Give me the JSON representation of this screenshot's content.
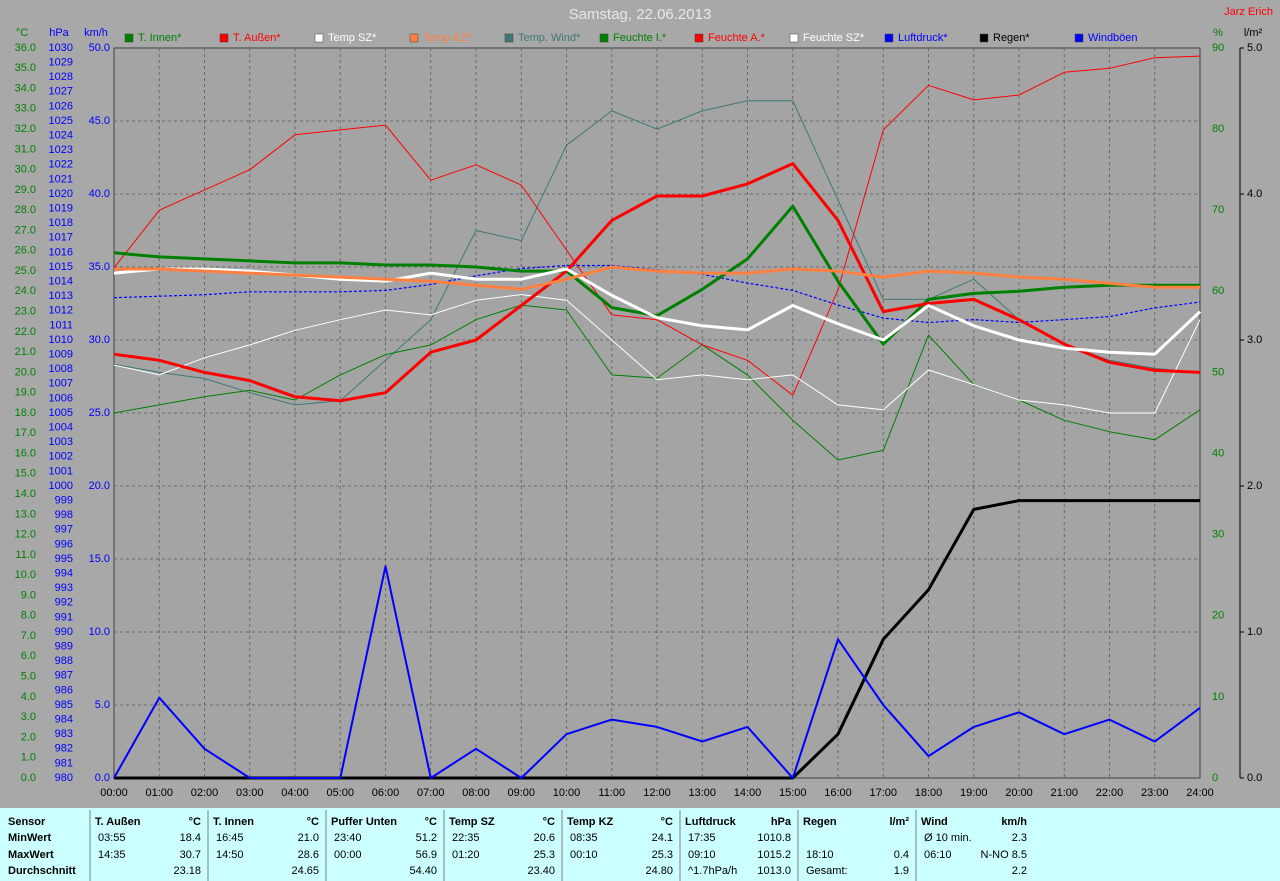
{
  "chart_data": {
    "type": "line",
    "title": "Samstag, 22.06.2013",
    "author": "Jarz Erich",
    "grid": true,
    "x": [
      "00:00",
      "01:00",
      "02:00",
      "03:00",
      "04:00",
      "05:00",
      "06:00",
      "07:00",
      "08:00",
      "09:00",
      "10:00",
      "11:00",
      "12:00",
      "13:00",
      "14:00",
      "15:00",
      "16:00",
      "17:00",
      "18:00",
      "19:00",
      "20:00",
      "21:00",
      "22:00",
      "23:00",
      "24:00"
    ],
    "axes": [
      {
        "unit": "°C",
        "side": "left",
        "color": "#008000",
        "lim": [
          0,
          36
        ],
        "ticks": [
          {
            "value": 0,
            "label": "0.0"
          },
          {
            "value": 1,
            "label": "1.0"
          },
          {
            "value": 2,
            "label": "2.0"
          },
          {
            "value": 3,
            "label": "3.0"
          },
          {
            "value": 4,
            "label": "4.0"
          },
          {
            "value": 5,
            "label": "5.0"
          },
          {
            "value": 6,
            "label": "6.0"
          },
          {
            "value": 7,
            "label": "7.0"
          },
          {
            "value": 8,
            "label": "8.0"
          },
          {
            "value": 9,
            "label": "9.0"
          },
          {
            "value": 10,
            "label": "10.0"
          },
          {
            "value": 11,
            "label": "11.0"
          },
          {
            "value": 12,
            "label": "12.0"
          },
          {
            "value": 13,
            "label": "13.0"
          },
          {
            "value": 14,
            "label": "14.0"
          },
          {
            "value": 15,
            "label": "15.0"
          },
          {
            "value": 16,
            "label": "16.0"
          },
          {
            "value": 17,
            "label": "17.0"
          },
          {
            "value": 18,
            "label": "18.0"
          },
          {
            "value": 19,
            "label": "19.0"
          },
          {
            "value": 20,
            "label": "20.0"
          },
          {
            "value": 21,
            "label": "21.0"
          },
          {
            "value": 22,
            "label": "22.0"
          },
          {
            "value": 23,
            "label": "23.0"
          },
          {
            "value": 24,
            "label": "24.0"
          },
          {
            "value": 25,
            "label": "25.0"
          },
          {
            "value": 26,
            "label": "26.0"
          },
          {
            "value": 27,
            "label": "27.0"
          },
          {
            "value": 28,
            "label": "28.0"
          },
          {
            "value": 29,
            "label": "29.0"
          },
          {
            "value": 30,
            "label": "30.0"
          },
          {
            "value": 31,
            "label": "31.0"
          },
          {
            "value": 32,
            "label": "32.0"
          },
          {
            "value": 33,
            "label": "33.0"
          },
          {
            "value": 34,
            "label": "34.0"
          },
          {
            "value": 35,
            "label": "35.0"
          },
          {
            "value": 36,
            "label": "36.0"
          }
        ]
      },
      {
        "unit": "hPa",
        "side": "left",
        "color": "#0000ff",
        "lim": [
          980,
          1030
        ],
        "ticks": [
          980,
          981,
          982,
          983,
          984,
          985,
          986,
          987,
          988,
          989,
          990,
          991,
          992,
          993,
          994,
          995,
          996,
          997,
          998,
          999,
          1000,
          1001,
          1002,
          1003,
          1004,
          1005,
          1006,
          1007,
          1008,
          1009,
          1010,
          1011,
          1012,
          1013,
          1014,
          1015,
          1016,
          1017,
          1018,
          1019,
          1020,
          1021,
          1022,
          1023,
          1024,
          1025,
          1026,
          1027,
          1028,
          1029,
          1030
        ]
      },
      {
        "unit": "km/h",
        "side": "left",
        "color": "#0000ff",
        "lim": [
          0,
          50
        ],
        "ticks": [
          {
            "value": 0,
            "label": "0.0"
          },
          {
            "value": 5,
            "label": "5.0"
          },
          {
            "value": 10,
            "label": "10.0"
          },
          {
            "value": 15,
            "label": "15.0"
          },
          {
            "value": 20,
            "label": "20.0"
          },
          {
            "value": 25,
            "label": "25.0"
          },
          {
            "value": 30,
            "label": "30.0"
          },
          {
            "value": 35,
            "label": "35.0"
          },
          {
            "value": 40,
            "label": "40.0"
          },
          {
            "value": 45,
            "label": "45.0"
          },
          {
            "value": 50,
            "label": "50.0"
          }
        ]
      },
      {
        "unit": "%",
        "side": "right",
        "color": "#008000",
        "lim": [
          0,
          90
        ],
        "ticks": [
          0,
          10,
          20,
          30,
          40,
          50,
          60,
          70,
          80,
          90
        ]
      },
      {
        "unit": "l/m²",
        "side": "right",
        "color": "#000000",
        "lim": [
          0,
          5
        ],
        "ticks": [
          {
            "value": 0,
            "label": "0.0"
          },
          {
            "value": 1,
            "label": "1.0"
          },
          {
            "value": 2,
            "label": "2.0"
          },
          {
            "value": 3,
            "label": "3.0"
          },
          {
            "value": 4,
            "label": "4.0"
          },
          {
            "value": 5,
            "label": "5.0"
          }
        ]
      }
    ],
    "series": [
      {
        "name": "T. Innen*",
        "color": "#008000",
        "axis": "°C",
        "style": "thick",
        "values": [
          25.9,
          25.7,
          25.6,
          25.5,
          25.4,
          25.4,
          25.3,
          25.3,
          25.2,
          25.0,
          25.0,
          23.2,
          22.8,
          24.1,
          25.6,
          28.2,
          24.5,
          21.4,
          23.6,
          23.9,
          24.0,
          24.2,
          24.3,
          24.3,
          24.3
        ]
      },
      {
        "name": "T. Außen*",
        "color": "#ff0000",
        "axis": "°C",
        "style": "thick",
        "values": [
          20.9,
          20.6,
          20.0,
          19.6,
          18.8,
          18.6,
          19.0,
          21.0,
          21.6,
          23.3,
          25.0,
          27.5,
          28.7,
          28.7,
          29.3,
          30.3,
          27.5,
          23.0,
          23.4,
          23.6,
          22.6,
          21.4,
          20.5,
          20.1,
          20.0
        ]
      },
      {
        "name": "Temp SZ*",
        "color": "#ffffff",
        "axis": "°C",
        "style": "thick",
        "values": [
          24.9,
          25.1,
          25.1,
          25.0,
          24.8,
          24.6,
          24.5,
          24.9,
          24.6,
          24.6,
          25.1,
          23.8,
          22.7,
          22.3,
          22.1,
          23.3,
          22.4,
          21.6,
          23.3,
          22.3,
          21.6,
          21.2,
          21.0,
          20.9,
          23.0
        ]
      },
      {
        "name": "Temp KZ*",
        "color": "#ff8040",
        "axis": "°C",
        "style": "thick",
        "values": [
          25.1,
          25.1,
          25.0,
          24.9,
          24.8,
          24.7,
          24.6,
          24.5,
          24.3,
          24.1,
          24.6,
          25.2,
          25.0,
          24.9,
          24.9,
          25.1,
          25.0,
          24.7,
          25.0,
          24.9,
          24.7,
          24.6,
          24.4,
          24.2,
          24.2
        ]
      },
      {
        "name": "Temp. Wind*",
        "color": "#3f7878",
        "axis": "°C",
        "style": "thin",
        "values": [
          20.4,
          20.0,
          19.7,
          19.0,
          18.4,
          18.6,
          20.6,
          22.6,
          27.0,
          26.5,
          31.2,
          32.9,
          32.0,
          32.9,
          33.4,
          33.4,
          28.5,
          23.6,
          23.6,
          24.6,
          22.6,
          21.4,
          20.6,
          20.2,
          20.0
        ]
      },
      {
        "name": "Feuchte I.*",
        "color": "#008000",
        "axis": "%",
        "style": "thin",
        "values": [
          45.0,
          46.0,
          47.0,
          47.8,
          46.6,
          49.7,
          52.2,
          53.4,
          56.5,
          58.3,
          57.7,
          49.7,
          49.3,
          53.4,
          49.7,
          44.1,
          39.2,
          40.4,
          54.6,
          48.5,
          46.6,
          44.1,
          42.7,
          41.7,
          45.4
        ]
      },
      {
        "name": "Feuchte A.*",
        "color": "#ff0000",
        "axis": "%",
        "style": "thin",
        "values": [
          62.9,
          70.0,
          72.5,
          75.0,
          79.3,
          79.9,
          80.5,
          73.7,
          75.6,
          73.1,
          65.1,
          57.1,
          56.5,
          53.4,
          51.5,
          47.2,
          60.2,
          79.9,
          85.4,
          83.6,
          84.2,
          87.0,
          87.5,
          88.8,
          89.0
        ]
      },
      {
        "name": "Feuchte SZ*",
        "color": "#ffffff",
        "axis": "%",
        "style": "thin",
        "values": [
          50.9,
          49.7,
          51.8,
          53.4,
          55.2,
          56.5,
          57.7,
          57.1,
          58.9,
          59.6,
          58.9,
          54.0,
          49.1,
          49.7,
          49.1,
          49.7,
          46.0,
          45.4,
          50.3,
          48.5,
          46.6,
          46.0,
          45.0,
          45.0,
          56.5
        ]
      },
      {
        "name": "Luftdruck*",
        "color": "#0000ff",
        "axis": "hPa",
        "style": "dotted",
        "values": [
          1012.9,
          1013.0,
          1013.1,
          1013.3,
          1013.3,
          1013.3,
          1013.4,
          1013.8,
          1014.4,
          1014.9,
          1015.1,
          1015.1,
          1014.8,
          1014.5,
          1013.9,
          1013.4,
          1012.4,
          1011.5,
          1011.2,
          1011.4,
          1011.2,
          1011.4,
          1011.6,
          1012.2,
          1012.6
        ]
      },
      {
        "name": "Regen*",
        "color": "#000000",
        "axis": "l/m²",
        "style": "thick",
        "values": [
          0,
          0,
          0,
          0,
          0,
          0,
          0,
          0,
          0,
          0,
          0,
          0,
          0,
          0,
          0,
          0,
          0.3,
          0.95,
          1.29,
          1.84,
          1.9,
          1.9,
          1.9,
          1.9,
          1.9
        ]
      },
      {
        "name": "Windböen",
        "color": "#0000ff",
        "axis": "km/h",
        "style": "medium",
        "values": [
          0,
          5.5,
          2.0,
          0,
          0,
          0,
          14.5,
          0,
          2.0,
          0,
          3.0,
          4.0,
          3.5,
          2.5,
          3.5,
          0,
          9.5,
          5.0,
          1.5,
          3.5,
          4.5,
          3.0,
          4.0,
          2.5,
          4.8
        ]
      }
    ]
  },
  "stats": {
    "row_labels": [
      "Sensor",
      "MinWert",
      "MaxWert",
      "Durchschnitt"
    ],
    "groups": [
      {
        "title": "T. Außen",
        "unit": "°C",
        "rows": [
          {
            "time": "03:55",
            "value": "18.4"
          },
          {
            "time": "14:35",
            "value": "30.7"
          },
          {
            "value": "23.18"
          }
        ]
      },
      {
        "title": "T. Innen",
        "unit": "°C",
        "rows": [
          {
            "time": "16:45",
            "value": "21.0"
          },
          {
            "time": "14:50",
            "value": "28.6"
          },
          {
            "value": "24.65"
          }
        ]
      },
      {
        "title": "Puffer Unten",
        "unit": "°C",
        "rows": [
          {
            "time": "23:40",
            "value": "51.2"
          },
          {
            "time": "00:00",
            "value": "56.9"
          },
          {
            "value": "54.40"
          }
        ]
      },
      {
        "title": "Temp SZ",
        "unit": "°C",
        "rows": [
          {
            "time": "22:35",
            "value": "20.6"
          },
          {
            "time": "01:20",
            "value": "25.3"
          },
          {
            "value": "23.40"
          }
        ]
      },
      {
        "title": "Temp KZ",
        "unit": "°C",
        "rows": [
          {
            "time": "08:35",
            "value": "24.1"
          },
          {
            "time": "00:10",
            "value": "25.3"
          },
          {
            "value": "24.80"
          }
        ]
      },
      {
        "title": "Luftdruck",
        "unit": "hPa",
        "rows": [
          {
            "time": "17:35",
            "value": "1010.8"
          },
          {
            "time": "09:10",
            "value": "1015.2"
          },
          {
            "time": "^1.7hPa/h",
            "value": "1013.0"
          }
        ]
      },
      {
        "title": "Regen",
        "unit": "l/m²",
        "rows": [
          {},
          {
            "time": "18:10",
            "value": "0.4"
          },
          {
            "time": "Gesamt:",
            "value": "1.9"
          }
        ]
      },
      {
        "title": "Wind",
        "unit": "km/h",
        "rows": [
          {
            "time": "Ø 10 min.",
            "value": "2.3"
          },
          {
            "time": "06:10",
            "value": "N-NO 8.5"
          },
          {
            "value": "2.2"
          }
        ]
      }
    ]
  }
}
